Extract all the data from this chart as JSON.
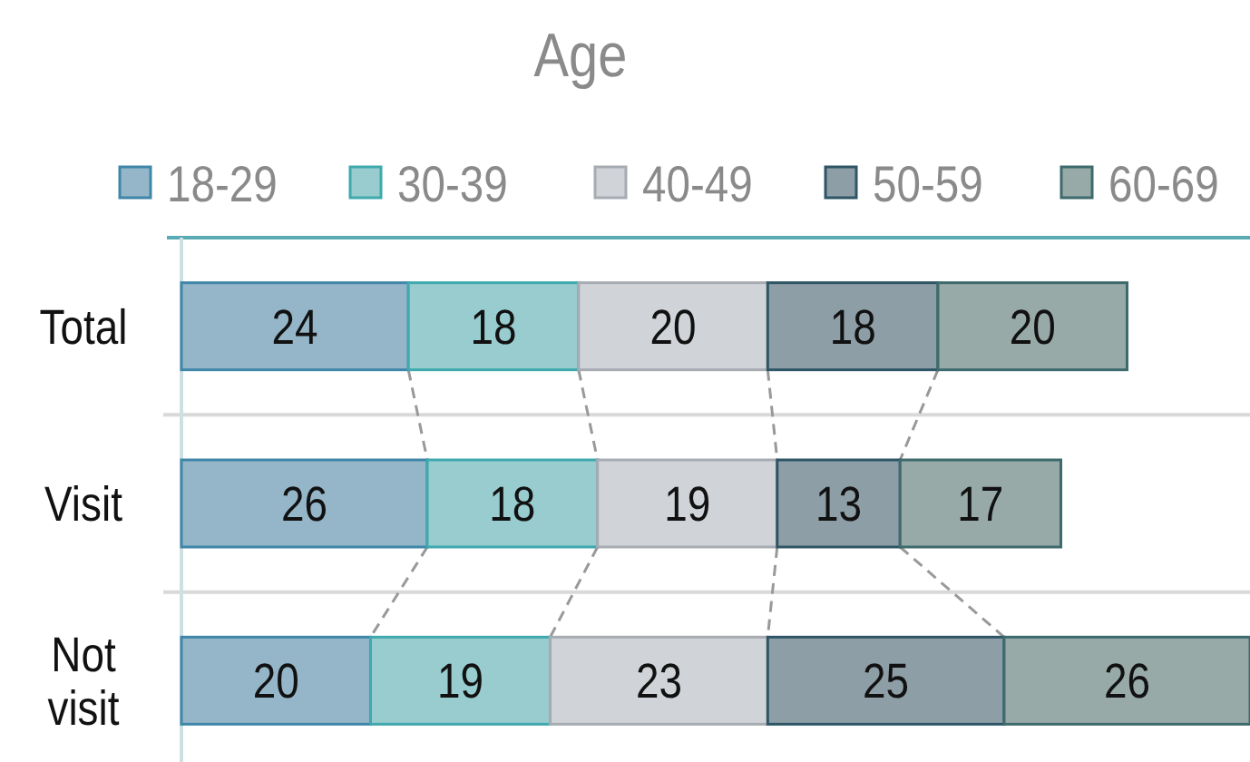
{
  "chart_data": {
    "type": "bar",
    "orientation": "horizontal",
    "stacked": true,
    "title": "Age",
    "categories": [
      "Total",
      "Visit",
      "Not visit"
    ],
    "series": [
      {
        "name": "18-29",
        "color": "#94b6c8",
        "values": [
          24,
          26,
          20
        ]
      },
      {
        "name": "30-39",
        "color": "#98cccf",
        "values": [
          18,
          18,
          19
        ]
      },
      {
        "name": "40-49",
        "color": "#d0d3d8",
        "values": [
          20,
          19,
          23
        ]
      },
      {
        "name": "50-59",
        "color": "#8e9ea6",
        "values": [
          18,
          13,
          25
        ]
      },
      {
        "name": "60-69",
        "color": "#98aaa8",
        "values": [
          20,
          17,
          26
        ]
      }
    ],
    "data_labels": true,
    "legend": "top",
    "grid": "y"
  }
}
